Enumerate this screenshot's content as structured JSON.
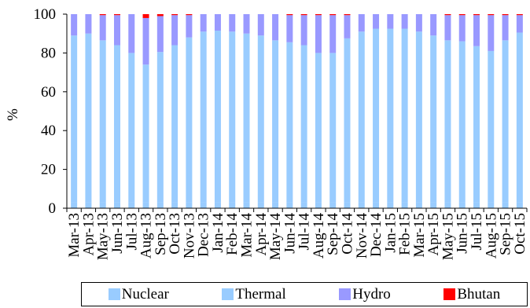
{
  "chart_data": {
    "type": "bar",
    "stacked": true,
    "ylabel": "%",
    "ylim": [
      0,
      100
    ],
    "yticks": [
      "0",
      "20",
      "40",
      "60",
      "80",
      "100"
    ],
    "categories": [
      "Mar-13",
      "Apr-13",
      "May-13",
      "Jun-13",
      "Jul-13",
      "Aug-13",
      "Sep-13",
      "Oct-13",
      "Nov-13",
      "Dec-13",
      "Jan-14",
      "Feb-14",
      "Mar-14",
      "Apr-14",
      "May-14",
      "Jun-14",
      "Jul-14",
      "Aug-14",
      "Sep-14",
      "Oct-14",
      "Nov-14",
      "Dec-14",
      "Jan-15",
      "Feb-15",
      "Mar-15",
      "Apr-15",
      "May-15",
      "Jun-15",
      "Jul-15",
      "Aug-15",
      "Sep-15",
      "Oct-15"
    ],
    "series": [
      {
        "name": "Nuclear",
        "color": "#99ccff",
        "values": [
          3,
          3,
          3,
          3,
          3,
          3,
          3,
          3,
          3,
          3,
          3,
          3,
          3,
          3,
          3,
          3,
          3,
          3,
          3,
          3,
          3,
          3,
          3,
          3,
          3,
          3,
          3,
          3,
          3,
          3,
          3,
          3
        ]
      },
      {
        "name": "Thermal",
        "color": "#99ccff",
        "values": [
          86,
          87,
          83.5,
          81,
          77,
          71,
          77.5,
          81,
          85,
          88,
          88.5,
          88,
          87,
          86,
          83.5,
          82.5,
          81,
          77,
          77,
          84.5,
          88,
          89.5,
          89.5,
          89.5,
          88,
          86,
          83.5,
          83,
          80.5,
          78,
          83.5,
          87.5
        ]
      },
      {
        "name": "Hydro",
        "color": "#9999ff",
        "values": [
          11,
          10,
          13,
          15.5,
          20,
          24,
          18.5,
          15.5,
          11.5,
          9,
          8.5,
          9,
          10,
          11,
          13.5,
          14,
          15.5,
          19.5,
          19.5,
          12,
          9,
          7.5,
          7.5,
          7.5,
          9,
          11,
          13,
          13.5,
          16,
          18.5,
          13,
          9
        ]
      },
      {
        "name": "Bhutan",
        "color": "#ff0000",
        "values": [
          0,
          0,
          0.5,
          0.5,
          0,
          2,
          1,
          0.5,
          0.5,
          0,
          0,
          0,
          0,
          0,
          0,
          0.5,
          0.5,
          0.5,
          0.5,
          0.5,
          0,
          0,
          0,
          0,
          0,
          0,
          0.5,
          0.5,
          0.5,
          0.5,
          0.5,
          0.5
        ]
      }
    ],
    "legend": [
      "Nuclear",
      "Thermal",
      "Hydro",
      "Bhutan"
    ],
    "legend_position": "bottom",
    "grid": false
  }
}
